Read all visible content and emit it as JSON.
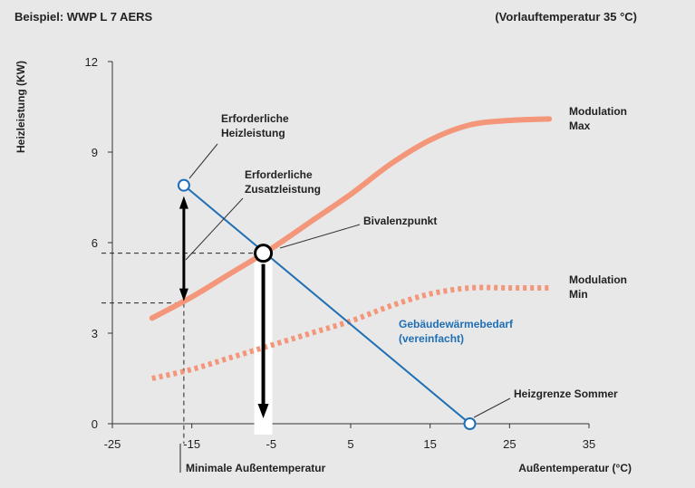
{
  "header": {
    "left": "Beispiel: WWP L 7 AERS",
    "right": "(Vorlauftemperatur 35 °C)"
  },
  "colors": {
    "background": "#e8e8e8",
    "modulation": "#f4967a",
    "demand": "#1f6fb5",
    "arrow": "#000000"
  },
  "chart_data": {
    "type": "line",
    "ylabel": "Heizleistung (KW)",
    "xlabel": "Außentemperatur (°C)",
    "xlim": [
      -25,
      35
    ],
    "ylim": [
      0,
      12
    ],
    "xticks": [
      "-25",
      "-15",
      "-5",
      "5",
      "15",
      "25",
      "35"
    ],
    "yticks": [
      "0",
      "3",
      "6",
      "9",
      "12"
    ],
    "grid": "none",
    "series": [
      {
        "name": "Modulation Max",
        "style": "solid",
        "x": [
          -20,
          -15,
          -10,
          -5,
          0,
          5,
          10,
          15,
          20,
          25,
          30
        ],
        "y": [
          3.5,
          4.2,
          5.0,
          5.8,
          6.7,
          7.6,
          8.6,
          9.4,
          9.9,
          10.05,
          10.1
        ]
      },
      {
        "name": "Modulation Min",
        "style": "dotted",
        "x": [
          -20,
          -15,
          -10,
          -5,
          0,
          5,
          10,
          15,
          20,
          25,
          30
        ],
        "y": [
          1.5,
          1.8,
          2.2,
          2.6,
          3.0,
          3.4,
          3.9,
          4.3,
          4.5,
          4.5,
          4.5
        ]
      },
      {
        "name": "Gebäudewärmebedarf (vereinfacht)",
        "style": "solid",
        "x": [
          -16,
          20
        ],
        "y": [
          7.9,
          0
        ]
      }
    ],
    "points": {
      "design_point": {
        "x": -16,
        "y": 7.9
      },
      "bivalence_point": {
        "x": -6,
        "y": 5.65
      },
      "heating_limit": {
        "x": 20,
        "y": 0
      },
      "min_outdoor_temp_x": -16,
      "hp_output_at_min_temp": 4.0
    },
    "annotations": {
      "erforderliche_heizleistung": [
        "Erforderliche",
        "Heizleistung"
      ],
      "erforderliche_zusatzleistung": [
        "Erforderliche",
        "Zusatzleistung"
      ],
      "bivalenzpunkt": "Bivalenzpunkt",
      "modulation_max": [
        "Modulation",
        "Max"
      ],
      "modulation_min": [
        "Modulation",
        "Min"
      ],
      "gebaeudewaermebedarf": [
        "Gebäudewärmebedarf",
        "(vereinfacht)"
      ],
      "heizgrenze": "Heizgrenze Sommer",
      "minimale_aussentemperatur": "Minimale Außentemperatur"
    }
  }
}
